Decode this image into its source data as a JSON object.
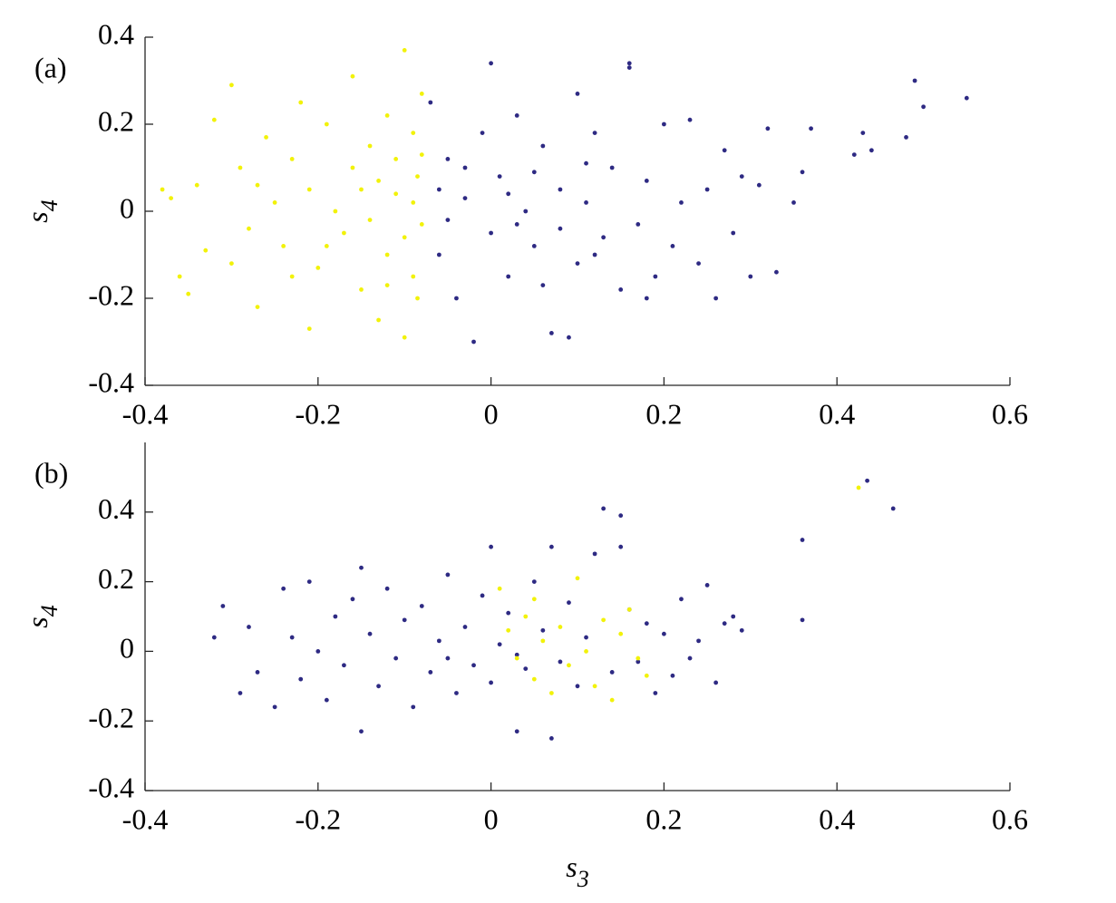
{
  "chart_data": [
    {
      "type": "scatter",
      "panel_label": "(a)",
      "ylabel": {
        "symbol": "s",
        "subscript": "4"
      },
      "xlim": [
        -0.4,
        0.6
      ],
      "ylim": [
        -0.4,
        0.4
      ],
      "xticks": [
        -0.4,
        -0.2,
        0,
        0.2,
        0.4,
        0.6
      ],
      "yticks": [
        -0.4,
        -0.2,
        0,
        0.2,
        0.4
      ],
      "series": [
        {
          "color": "#f2f20a",
          "x": [
            -0.38,
            -0.37,
            -0.36,
            -0.35,
            -0.34,
            -0.33,
            -0.32,
            -0.3,
            -0.3,
            -0.29,
            -0.28,
            -0.27,
            -0.26,
            -0.25,
            -0.24,
            -0.23,
            -0.22,
            -0.21,
            -0.21,
            -0.2,
            -0.19,
            -0.18,
            -0.17,
            -0.16,
            -0.16,
            -0.15,
            -0.14,
            -0.14,
            -0.13,
            -0.13,
            -0.12,
            -0.12,
            -0.11,
            -0.11,
            -0.1,
            -0.1,
            -0.1,
            -0.09,
            -0.09,
            -0.09,
            -0.085,
            -0.085,
            -0.08,
            -0.08,
            -0.08,
            -0.19,
            -0.23,
            -0.27,
            -0.15,
            -0.12
          ],
          "values": [
            0.05,
            0.03,
            -0.15,
            -0.19,
            0.06,
            -0.09,
            0.21,
            0.29,
            -0.12,
            0.1,
            -0.04,
            -0.22,
            0.17,
            0.02,
            -0.08,
            0.12,
            0.25,
            -0.27,
            0.05,
            -0.13,
            0.2,
            0.0,
            -0.05,
            0.31,
            0.1,
            -0.18,
            0.15,
            -0.02,
            0.07,
            -0.25,
            0.22,
            -0.1,
            0.04,
            0.12,
            0.37,
            -0.06,
            -0.29,
            0.18,
            0.02,
            -0.15,
            0.08,
            -0.2,
            0.27,
            -0.03,
            0.13,
            -0.08,
            -0.15,
            0.06,
            0.05,
            -0.17
          ]
        },
        {
          "color": "#2e2a83",
          "x": [
            -0.07,
            -0.06,
            -0.05,
            -0.04,
            -0.03,
            -0.02,
            -0.01,
            0.0,
            0.0,
            0.01,
            0.02,
            0.03,
            0.04,
            0.05,
            0.06,
            0.07,
            0.08,
            0.09,
            0.1,
            0.1,
            0.11,
            0.12,
            0.13,
            0.14,
            0.15,
            0.16,
            0.16,
            0.17,
            0.18,
            0.19,
            0.2,
            0.21,
            0.22,
            0.23,
            0.24,
            0.25,
            0.26,
            0.27,
            0.28,
            0.29,
            0.3,
            0.31,
            0.32,
            0.33,
            0.35,
            0.37,
            0.36,
            0.42,
            0.43,
            0.44,
            0.48,
            0.49,
            0.5,
            0.55,
            -0.03,
            0.02,
            0.05,
            0.08,
            -0.05,
            0.12,
            0.03,
            0.18,
            0.06,
            -0.06,
            0.11
          ],
          "values": [
            0.25,
            -0.1,
            0.12,
            -0.2,
            0.03,
            -0.3,
            0.18,
            -0.05,
            0.34,
            0.08,
            -0.15,
            0.22,
            0.0,
            -0.08,
            0.15,
            -0.28,
            0.05,
            -0.29,
            0.27,
            -0.12,
            0.02,
            0.18,
            -0.06,
            0.1,
            -0.18,
            0.34,
            0.33,
            -0.03,
            0.07,
            -0.15,
            0.2,
            -0.08,
            0.02,
            0.21,
            -0.12,
            0.05,
            -0.2,
            0.14,
            -0.05,
            0.08,
            -0.15,
            0.06,
            0.19,
            -0.14,
            0.02,
            0.19,
            0.09,
            0.13,
            0.18,
            0.14,
            0.17,
            0.3,
            0.24,
            0.26,
            0.1,
            0.04,
            0.09,
            -0.04,
            -0.02,
            -0.1,
            -0.03,
            -0.2,
            -0.17,
            0.05,
            0.11
          ]
        }
      ]
    },
    {
      "type": "scatter",
      "panel_label": "(b)",
      "ylabel": {
        "symbol": "s",
        "subscript": "4"
      },
      "xlabel": {
        "symbol": "s",
        "subscript": "3"
      },
      "xlim": [
        -0.4,
        0.6
      ],
      "ylim": [
        -0.4,
        0.6
      ],
      "xticks": [
        -0.4,
        -0.2,
        0,
        0.2,
        0.4,
        0.6
      ],
      "yticks": [
        -0.4,
        -0.2,
        0,
        0.2,
        0.4
      ],
      "series": [
        {
          "color": "#2e2a83",
          "x": [
            -0.32,
            -0.31,
            -0.29,
            -0.28,
            -0.27,
            -0.25,
            -0.24,
            -0.23,
            -0.22,
            -0.21,
            -0.2,
            -0.19,
            -0.18,
            -0.17,
            -0.16,
            -0.15,
            -0.15,
            -0.14,
            -0.13,
            -0.12,
            -0.11,
            -0.1,
            -0.09,
            -0.08,
            -0.07,
            -0.06,
            -0.05,
            -0.04,
            -0.03,
            -0.02,
            -0.01,
            0.0,
            0.0,
            0.01,
            0.02,
            0.03,
            0.04,
            0.05,
            0.06,
            0.07,
            0.07,
            0.08,
            0.09,
            0.1,
            0.11,
            0.12,
            0.13,
            0.14,
            0.15,
            0.15,
            0.16,
            0.17,
            0.18,
            0.19,
            0.2,
            0.21,
            0.22,
            0.23,
            0.24,
            0.25,
            0.26,
            0.27,
            0.28,
            0.29,
            0.36,
            0.36,
            0.435,
            0.465,
            -0.05,
            0.03
          ],
          "values": [
            0.04,
            0.13,
            -0.12,
            0.07,
            -0.06,
            -0.16,
            0.18,
            0.04,
            -0.08,
            0.2,
            0.0,
            -0.14,
            0.1,
            -0.04,
            0.15,
            -0.23,
            0.24,
            0.05,
            -0.1,
            0.18,
            -0.02,
            0.09,
            -0.16,
            0.13,
            -0.06,
            0.03,
            0.22,
            -0.12,
            0.07,
            -0.04,
            0.16,
            0.3,
            -0.09,
            0.02,
            0.11,
            -0.23,
            -0.05,
            0.2,
            0.06,
            -0.25,
            0.3,
            -0.03,
            0.14,
            -0.1,
            0.04,
            0.28,
            0.41,
            -0.06,
            0.39,
            0.3,
            0.12,
            -0.03,
            0.08,
            -0.12,
            0.05,
            -0.07,
            0.15,
            -0.02,
            0.03,
            0.19,
            -0.09,
            0.08,
            0.1,
            0.06,
            0.32,
            0.09,
            0.49,
            0.41,
            -0.02,
            -0.01
          ]
        },
        {
          "color": "#f2f20a",
          "x": [
            0.01,
            0.02,
            0.03,
            0.04,
            0.05,
            0.06,
            0.07,
            0.08,
            0.09,
            0.1,
            0.11,
            0.12,
            0.13,
            0.14,
            0.15,
            0.16,
            0.17,
            0.18,
            0.05,
            0.425
          ],
          "values": [
            0.18,
            0.06,
            -0.02,
            0.1,
            -0.08,
            0.03,
            -0.12,
            0.07,
            -0.04,
            0.21,
            0.0,
            -0.1,
            0.09,
            -0.14,
            0.05,
            0.12,
            -0.02,
            -0.07,
            0.15,
            0.47
          ]
        }
      ]
    }
  ]
}
